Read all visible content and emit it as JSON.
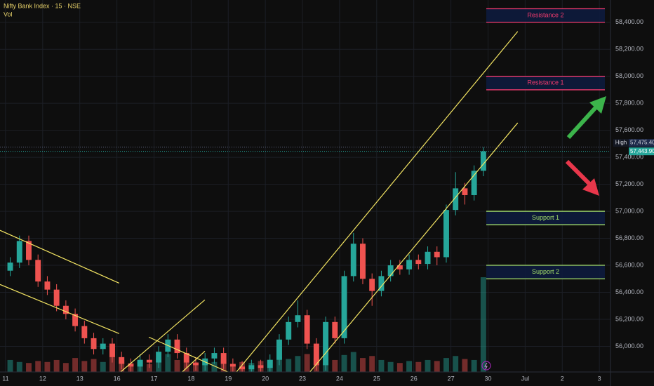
{
  "chart_data": {
    "type": "candlestick",
    "title": "Nifty Bank Index · 15 · NSE",
    "subtitle": "Vol",
    "up_color": "#26a69a",
    "down_color": "#ef5350",
    "grid": true,
    "xlim": [
      -0.15,
      16.3
    ],
    "ylim": [
      55810,
      58565
    ],
    "xticks": [
      {
        "value": 0,
        "label": "11"
      },
      {
        "value": 1,
        "label": "12"
      },
      {
        "value": 2,
        "label": "13"
      },
      {
        "value": 3,
        "label": "16"
      },
      {
        "value": 4,
        "label": "17"
      },
      {
        "value": 5,
        "label": "18"
      },
      {
        "value": 6,
        "label": "19"
      },
      {
        "value": 7,
        "label": "20"
      },
      {
        "value": 8,
        "label": "23"
      },
      {
        "value": 9,
        "label": "24"
      },
      {
        "value": 10,
        "label": "25"
      },
      {
        "value": 11,
        "label": "26"
      },
      {
        "value": 12,
        "label": "27"
      },
      {
        "value": 13,
        "label": "30"
      },
      {
        "value": 14,
        "label": "Jul"
      },
      {
        "value": 15,
        "label": "2"
      },
      {
        "value": 16,
        "label": "3"
      }
    ],
    "yticks": [
      {
        "value": 56000,
        "label": "56,000.00"
      },
      {
        "value": 56200,
        "label": "56,200.00"
      },
      {
        "value": 56400,
        "label": "56,400.00"
      },
      {
        "value": 56600,
        "label": "56,600.00"
      },
      {
        "value": 56800,
        "label": "56,800.00"
      },
      {
        "value": 57000,
        "label": "57,000.00"
      },
      {
        "value": 57200,
        "label": "57,200.00"
      },
      {
        "value": 57400,
        "label": "57,400.00"
      },
      {
        "value": 57600,
        "label": "57,600.00"
      },
      {
        "value": 57800,
        "label": "57,800.00"
      },
      {
        "value": 58000,
        "label": "58,000.00"
      },
      {
        "value": 58200,
        "label": "58,200.00"
      },
      {
        "value": 58400,
        "label": "58,400.00"
      }
    ],
    "x": [
      0.125,
      0.375,
      0.625,
      0.875,
      1.125,
      1.375,
      1.625,
      1.875,
      2.125,
      2.375,
      2.625,
      2.875,
      3.125,
      3.375,
      3.625,
      3.875,
      4.125,
      4.375,
      4.625,
      4.875,
      5.125,
      5.375,
      5.625,
      5.875,
      6.125,
      6.375,
      6.625,
      6.875,
      7.125,
      7.375,
      7.625,
      7.875,
      8.125,
      8.375,
      8.625,
      8.875,
      9.125,
      9.375,
      9.625,
      9.875,
      10.125,
      10.375,
      10.625,
      10.875,
      11.125,
      11.375,
      11.625,
      11.875,
      12.125,
      12.375,
      12.625,
      12.875
    ],
    "open": [
      56560,
      56620,
      56780,
      56640,
      56480,
      56420,
      56300,
      56240,
      56150,
      56060,
      55980,
      56020,
      55920,
      55870,
      55850,
      55900,
      55880,
      55960,
      56050,
      55950,
      55880,
      55860,
      55910,
      55950,
      55870,
      55850,
      55830,
      55860,
      55840,
      55900,
      56050,
      56180,
      56230,
      56020,
      55860,
      56180,
      56060,
      56520,
      56760,
      56500,
      56410,
      56520,
      56600,
      56570,
      56640,
      56610,
      56700,
      56660,
      57010,
      57170,
      57120,
      57300
    ],
    "high": [
      56660,
      56820,
      56820,
      56680,
      56520,
      56460,
      56340,
      56280,
      56190,
      56100,
      56060,
      56060,
      55960,
      55910,
      55940,
      55940,
      56000,
      56090,
      56090,
      55990,
      55920,
      55950,
      55990,
      55990,
      55910,
      55890,
      55900,
      55900,
      55940,
      56090,
      56220,
      56340,
      56270,
      56060,
      56220,
      56220,
      56560,
      56840,
      56800,
      56540,
      56560,
      56640,
      56640,
      56680,
      56680,
      56740,
      56740,
      57050,
      57290,
      57210,
      57340,
      57475.4
    ],
    "low": [
      56520,
      56580,
      56600,
      56440,
      56380,
      56260,
      56200,
      56110,
      56020,
      55940,
      55940,
      55880,
      55830,
      55810,
      55810,
      55840,
      55840,
      55920,
      55910,
      55840,
      55820,
      55820,
      55870,
      55830,
      55810,
      55810,
      55810,
      55810,
      55810,
      55860,
      56010,
      56140,
      55980,
      55820,
      55820,
      56020,
      56020,
      56480,
      56460,
      56300,
      56370,
      56480,
      56530,
      56530,
      56570,
      56570,
      56600,
      56620,
      56970,
      57050,
      57080,
      57260
    ],
    "close": [
      56620,
      56780,
      56640,
      56480,
      56420,
      56300,
      56240,
      56150,
      56060,
      55980,
      56020,
      55920,
      55870,
      55850,
      55900,
      55880,
      55960,
      56050,
      55950,
      55880,
      55860,
      55910,
      55950,
      55870,
      55850,
      55830,
      55860,
      55840,
      55900,
      56050,
      56180,
      56230,
      56020,
      55860,
      56180,
      56060,
      56520,
      56760,
      56500,
      56410,
      56520,
      56600,
      56570,
      56640,
      56610,
      56700,
      56660,
      57010,
      57170,
      57120,
      57300,
      57443.9
    ],
    "volume": [
      12,
      10,
      9,
      11,
      10,
      12,
      9,
      14,
      11,
      13,
      10,
      16,
      12,
      9,
      10,
      8,
      14,
      18,
      12,
      10,
      9,
      11,
      10,
      13,
      8,
      10,
      9,
      11,
      12,
      15,
      13,
      16,
      18,
      14,
      15,
      12,
      17,
      20,
      14,
      16,
      12,
      10,
      9,
      11,
      10,
      12,
      11,
      14,
      16,
      13,
      12,
      95
    ],
    "high_marker": {
      "label": "High",
      "value": 57475.4,
      "value_label": "57,475.40"
    },
    "last_price": {
      "value": 57443.9,
      "value_label": "57,443.90"
    },
    "zones": [
      {
        "label": "Resistance 2",
        "range": [
          58400,
          58500
        ],
        "color": "#f23b6e"
      },
      {
        "label": "Resistance 1",
        "range": [
          57900,
          58000
        ],
        "color": "#f23b6e"
      },
      {
        "label": "Support 1",
        "range": [
          56900,
          57000
        ],
        "color": "#a5e06a"
      },
      {
        "label": "Support 2",
        "range": [
          56500,
          56600
        ],
        "color": "#a5e06a"
      }
    ],
    "trendline_color": "#f5e663",
    "trendlines": [
      {
        "x": [
          -0.15,
          3.06
        ],
        "y": [
          56859,
          56468
        ]
      },
      {
        "x": [
          -0.15,
          3.06
        ],
        "y": [
          56458,
          56094
        ]
      },
      {
        "x": [
          3.1,
          5.37
        ],
        "y": [
          55810,
          56344
        ]
      },
      {
        "x": [
          3.86,
          5.99
        ],
        "y": [
          56068,
          55810
        ]
      },
      {
        "x": [
          4.76,
          5.37
        ],
        "y": [
          55810,
          55964
        ]
      },
      {
        "x": [
          6.22,
          13.8
        ],
        "y": [
          55810,
          58332
        ]
      },
      {
        "x": [
          8.2,
          13.8
        ],
        "y": [
          55810,
          57655
        ]
      }
    ]
  }
}
